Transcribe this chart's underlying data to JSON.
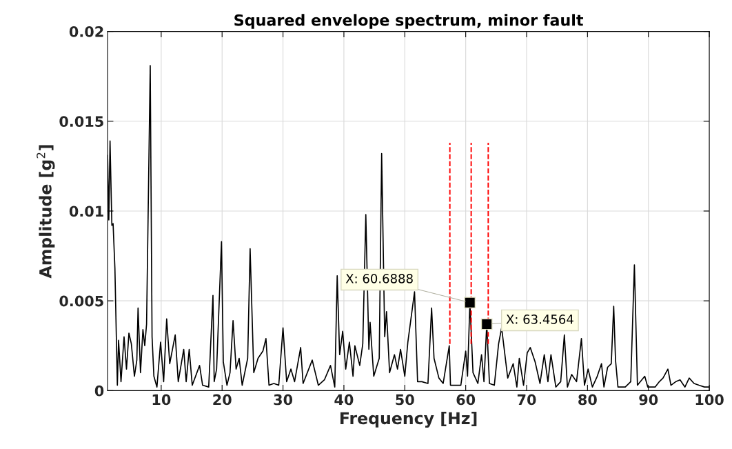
{
  "chart_data": {
    "type": "line",
    "title": "Squared envelope spectrum, minor fault",
    "xlabel": "Frequency [Hz]",
    "ylabel": "Amplitude [g$^{2}$]",
    "xlim": [
      1.2,
      100
    ],
    "ylim": [
      0,
      0.02
    ],
    "xticks": [
      10,
      20,
      30,
      40,
      50,
      60,
      70,
      80,
      90,
      100
    ],
    "yticks": [
      0,
      0.005,
      0.01,
      0.015,
      0.02
    ],
    "grid": true,
    "marker": "none",
    "line_style": "solid",
    "series": [
      {
        "color": "#000000",
        "x": [
          1.2,
          1.4,
          1.6,
          1.9,
          2.1,
          2.4,
          2.8,
          3.0,
          3.4,
          3.9,
          4.3,
          4.7,
          5.1,
          5.6,
          6.0,
          6.2,
          6.6,
          7.0,
          7.3,
          7.6,
          8.2,
          8.5,
          8.8,
          9.3,
          9.9,
          10.4,
          10.9,
          11.4,
          12.3,
          12.8,
          13.7,
          14.1,
          14.6,
          15.1,
          16.3,
          16.8,
          17.8,
          18.5,
          18.7,
          19.1,
          19.9,
          20.2,
          20.8,
          21.3,
          21.8,
          22.3,
          22.8,
          23.3,
          24.2,
          24.6,
          25.2,
          25.9,
          26.7,
          27.2,
          27.7,
          28.5,
          29.3,
          30.0,
          30.6,
          31.3,
          31.9,
          32.9,
          33.3,
          34.8,
          35.8,
          36.8,
          37.8,
          38.5,
          38.9,
          39.3,
          39.8,
          40.3,
          40.9,
          41.5,
          41.8,
          42.6,
          43.1,
          43.6,
          44.1,
          44.3,
          44.9,
          45.8,
          46.2,
          46.7,
          47.0,
          47.5,
          48.3,
          48.8,
          49.3,
          50.0,
          50.5,
          51.6,
          52.1,
          52.8,
          53.8,
          54.4,
          54.8,
          55.6,
          56.3,
          57.3,
          57.5,
          58.3,
          59.2,
          60.0,
          60.3,
          60.6888,
          61.2,
          62.0,
          62.6,
          63.0,
          63.4564,
          63.9,
          64.7,
          65.4,
          65.9,
          66.9,
          67.8,
          68.4,
          68.8,
          69.5,
          70.1,
          70.6,
          71.4,
          72.2,
          72.9,
          73.5,
          74.0,
          74.8,
          75.6,
          76.2,
          76.7,
          77.4,
          78.2,
          79.0,
          79.5,
          80.1,
          80.8,
          81.6,
          82.3,
          82.7,
          83.3,
          83.9,
          84.3,
          84.6,
          85.0,
          86.2,
          87.1,
          87.7,
          88.2,
          89.4,
          89.9,
          91.1,
          91.8,
          92.4,
          93.2,
          93.7,
          94.5,
          95.2,
          96.0,
          96.7,
          97.5,
          98.3,
          99.2,
          100
        ],
        "values": [
          0.0131,
          0.0095,
          0.0139,
          0.0092,
          0.0093,
          0.0068,
          0.0003,
          0.0028,
          0.0005,
          0.003,
          0.0012,
          0.0032,
          0.0026,
          0.0008,
          0.0017,
          0.0046,
          0.001,
          0.0034,
          0.0025,
          0.0037,
          0.0181,
          0.003,
          0.0008,
          0.0002,
          0.0027,
          0.0005,
          0.004,
          0.0015,
          0.0031,
          0.0005,
          0.0023,
          0.0005,
          0.0023,
          0.0003,
          0.0014,
          0.0003,
          0.0002,
          0.0053,
          0.0005,
          0.0012,
          0.0083,
          0.0016,
          0.0003,
          0.001,
          0.0039,
          0.0012,
          0.0018,
          0.0003,
          0.0018,
          0.0079,
          0.001,
          0.0018,
          0.0022,
          0.0029,
          0.0003,
          0.0004,
          0.0003,
          0.0035,
          0.0005,
          0.0012,
          0.0005,
          0.0024,
          0.0004,
          0.0017,
          0.0003,
          0.0006,
          0.0014,
          0.0002,
          0.0064,
          0.002,
          0.0033,
          0.0012,
          0.0027,
          0.0008,
          0.0025,
          0.0014,
          0.0026,
          0.0098,
          0.0023,
          0.0038,
          0.0008,
          0.0018,
          0.0132,
          0.003,
          0.0044,
          0.001,
          0.002,
          0.0012,
          0.0023,
          0.0008,
          0.0027,
          0.0055,
          0.0005,
          0.0005,
          0.0004,
          0.0046,
          0.0018,
          0.0007,
          0.0004,
          0.0025,
          0.0003,
          0.0003,
          0.0003,
          0.0022,
          0.0008,
          0.0049,
          0.001,
          0.0004,
          0.002,
          0.0005,
          0.0037,
          0.0004,
          0.0003,
          0.0026,
          0.0035,
          0.0007,
          0.0015,
          0.0002,
          0.0018,
          0.0003,
          0.0021,
          0.0024,
          0.0016,
          0.0004,
          0.002,
          0.0005,
          0.002,
          0.0002,
          0.0005,
          0.0031,
          0.0002,
          0.0009,
          0.0005,
          0.0029,
          0.0003,
          0.0012,
          0.0002,
          0.0008,
          0.0015,
          0.0002,
          0.0013,
          0.0015,
          0.0047,
          0.0017,
          0.0002,
          0.0002,
          0.0005,
          0.007,
          0.0003,
          0.0008,
          0.0002,
          0.0002,
          0.0005,
          0.0007,
          0.0012,
          0.0003,
          0.0005,
          0.0006,
          0.0002,
          0.0007,
          0.0004,
          0.0003,
          0.0002,
          0.0002
        ]
      }
    ],
    "ref_lines": [
      {
        "axis": "x",
        "value": 57.4,
        "color": "#ff0000",
        "line_style": "dashed"
      },
      {
        "axis": "x",
        "value": 60.9,
        "color": "#ff0000",
        "line_style": "dashed"
      },
      {
        "axis": "x",
        "value": 63.7,
        "color": "#ff0000",
        "line_style": "dashed"
      }
    ],
    "annotations": [
      {
        "text": "X: 60.6888",
        "x": 60.6888,
        "y": 0.0049
      },
      {
        "text": "X: 63.4564",
        "x": 63.4564,
        "y": 0.0037
      }
    ]
  }
}
